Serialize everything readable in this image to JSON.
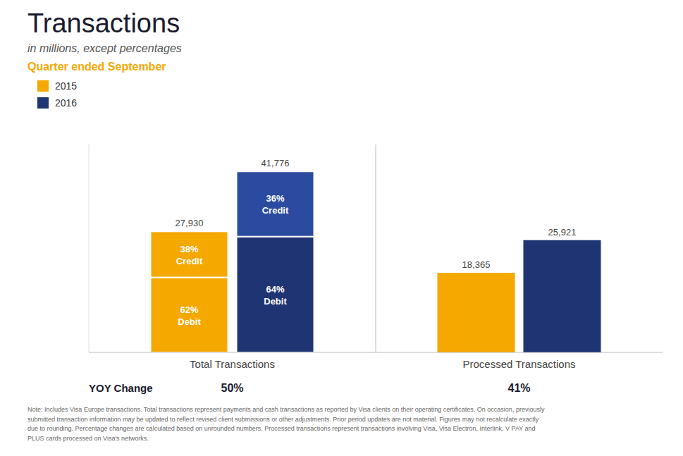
{
  "chart_data": {
    "type": "bar",
    "title": "Transactions",
    "subtitle": "in millions, except percentages",
    "annotations": [
      "Quarter ended September",
      "Note: Includes Visa Europe transactions. Total transactions represent payments and cash transactions as reported by Visa clients on their operating certificates. On occasion, previously\nsubmitted transaction information may be updated to reflect revised client submissions or other adjustments. Prior period updates are not material. Figures may not recalculate exactly\ndue to rounding. Percentage changes are calculated based on unrounded numbers. Processed transactions represent transactions involving Visa, Visa Electron, Interlink, V PAY and\nPLUS cards processed on Visa's networks."
    ],
    "categories": [
      "Total Transactions",
      "Processed Transactions"
    ],
    "series": [
      {
        "name": "2015",
        "color": "#F5A800",
        "values": [
          27930,
          18365
        ],
        "value_labels": [
          "27,930",
          "18,365"
        ],
        "segments": [
          {
            "name": "Debit",
            "color": "#F5A800",
            "values": [
              17316.6,
              null
            ],
            "shares": [
              62,
              null
            ],
            "share_labels": [
              "62%",
              null
            ]
          },
          {
            "name": "Credit",
            "color": "#F5A800",
            "values": [
              10613.4,
              null
            ],
            "shares": [
              38,
              null
            ],
            "share_labels": [
              "38%",
              null
            ]
          }
        ]
      },
      {
        "name": "2016",
        "color": "#1F3472",
        "values": [
          41776,
          25921
        ],
        "value_labels": [
          "41,776",
          "25,921"
        ],
        "segments": [
          {
            "name": "Debit",
            "color": "#1F3472",
            "values": [
              26736.64,
              null
            ],
            "shares": [
              64,
              null
            ],
            "share_labels": [
              "64%",
              null
            ]
          },
          {
            "name": "Credit",
            "color": "#2B4BA0",
            "values": [
              15039.36,
              null
            ],
            "shares": [
              36,
              null
            ],
            "share_labels": [
              "36%",
              null
            ]
          }
        ]
      }
    ],
    "yoy": {
      "label": "YOY Change",
      "values": [
        50,
        41
      ],
      "value_labels": [
        "50%",
        "41%"
      ]
    },
    "ylim": [
      0,
      48000
    ],
    "tick_labels": "x",
    "grid": false,
    "legend": "upper left",
    "data_labels": true
  }
}
